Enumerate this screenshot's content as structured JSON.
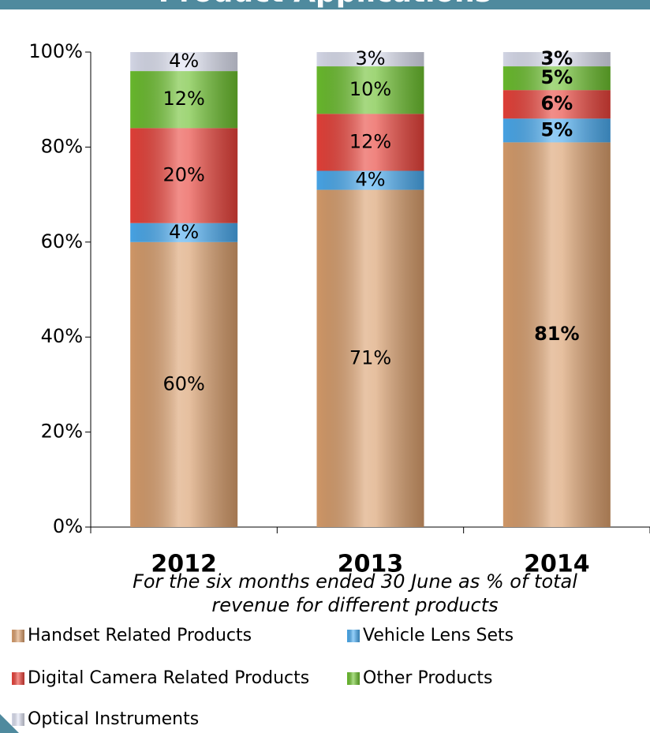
{
  "chart_data": {
    "type": "stacked_bar",
    "title": "Product Applications",
    "subtitle": "For the six months ended 30 June as % of total revenue for different products",
    "categories": [
      "2012",
      "2013",
      "2014"
    ],
    "series": [
      {
        "name": "Handset Related Products",
        "color": "#d99e6c",
        "values": [
          60,
          71,
          81
        ],
        "value_labels": [
          "60%",
          "71%",
          "81%"
        ]
      },
      {
        "name": "Vehicle Lens Sets",
        "color": "#4aaaee",
        "values": [
          4,
          4,
          5
        ],
        "value_labels": [
          "4%",
          "4%",
          "5%"
        ]
      },
      {
        "name": "Digital Camera Related Products",
        "color": "#e8423a",
        "values": [
          20,
          12,
          6
        ],
        "value_labels": [
          "20%",
          "12%",
          "6%"
        ]
      },
      {
        "name": "Other Products",
        "color": "#6cbf2e",
        "values": [
          12,
          10,
          5
        ],
        "value_labels": [
          "12%",
          "10%",
          "5%"
        ]
      },
      {
        "name": "Optical Instruments",
        "color": "#dde0f0",
        "values": [
          4,
          3,
          3
        ],
        "value_labels": [
          "4%",
          "3%",
          "3%"
        ]
      }
    ],
    "ylim": [
      0,
      100
    ],
    "yticks": [
      {
        "value": 0,
        "label": "0%"
      },
      {
        "value": 20,
        "label": "20%"
      },
      {
        "value": 40,
        "label": "40%"
      },
      {
        "value": 60,
        "label": "60%"
      },
      {
        "value": 80,
        "label": "80%"
      },
      {
        "value": 100,
        "label": "100%"
      }
    ],
    "grid": false
  }
}
